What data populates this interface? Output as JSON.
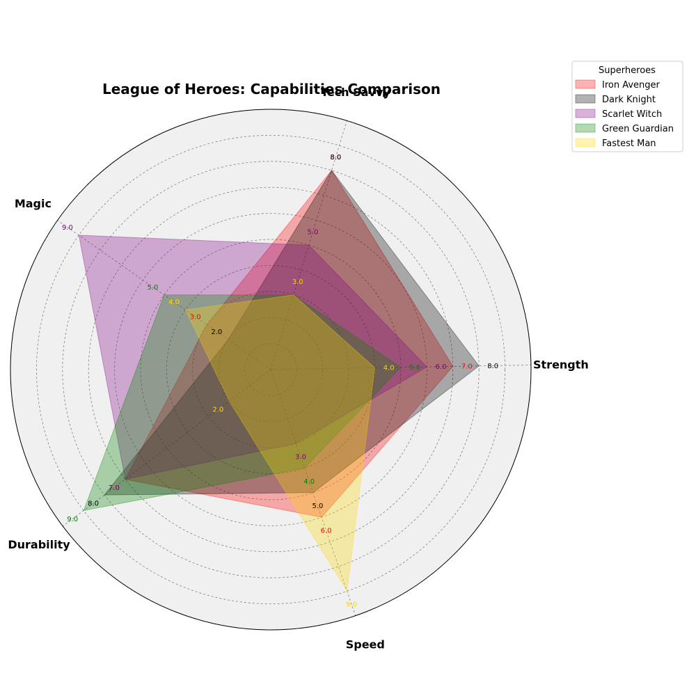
{
  "chart_data": {
    "type": "radar",
    "title": "League of Heroes: Capabilities Comparison",
    "axes": [
      "Strength",
      "Tech Savvy",
      "Magic",
      "Durability",
      "Speed"
    ],
    "rlim": [
      0,
      10
    ],
    "grid": true,
    "legend": {
      "title": "Superheroes",
      "placement": "top-right outside"
    },
    "series": [
      {
        "name": "Iron Avenger",
        "color": "#ff0000",
        "values": [
          7,
          8,
          3,
          7,
          6
        ]
      },
      {
        "name": "Dark Knight",
        "color": "#000000",
        "values": [
          8,
          8,
          2,
          8,
          5
        ]
      },
      {
        "name": "Scarlet Witch",
        "color": "#800080",
        "values": [
          6,
          5,
          9,
          7,
          3
        ]
      },
      {
        "name": "Green Guardian",
        "color": "#008000",
        "values": [
          5,
          3,
          5,
          9,
          4
        ]
      },
      {
        "name": "Fastest Man",
        "color": "#ffd700",
        "values": [
          4,
          3,
          4,
          2,
          9
        ]
      }
    ]
  }
}
